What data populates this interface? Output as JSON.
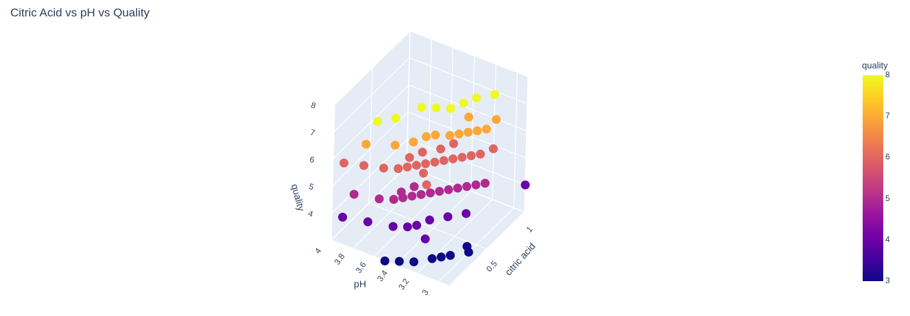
{
  "chart_data": {
    "type": "scatter",
    "title": "Citric Acid vs pH vs Quality",
    "axes": {
      "x": {
        "label": "citric acid",
        "range": [
          0,
          1
        ],
        "ticks": [
          "0.5",
          "1"
        ]
      },
      "y": {
        "label": "pH",
        "range": [
          2.9,
          4.0
        ],
        "ticks": [
          "3",
          "3.2",
          "3.4",
          "3.6",
          "3.8",
          "4"
        ]
      },
      "z": {
        "label": "quality",
        "range": [
          3,
          8
        ],
        "ticks": [
          "4",
          "5",
          "6",
          "7",
          "8"
        ]
      }
    },
    "colorbar": {
      "title": "quality",
      "range": [
        3,
        8
      ],
      "ticks": [
        "3",
        "4",
        "5",
        "6",
        "7",
        "8"
      ],
      "colorscale": [
        "#0d0887",
        "#46039f",
        "#7201a8",
        "#9c179e",
        "#bd3786",
        "#d8576b",
        "#ed7953",
        "#fb9f3a",
        "#fdca26",
        "#f0f921"
      ]
    },
    "points": [
      {
        "x": 0.0,
        "y": 3.9,
        "z": 6
      },
      {
        "x": 0.05,
        "y": 3.75,
        "z": 6
      },
      {
        "x": 0.1,
        "y": 3.6,
        "z": 6
      },
      {
        "x": 0.15,
        "y": 3.5,
        "z": 6
      },
      {
        "x": 0.2,
        "y": 3.45,
        "z": 6
      },
      {
        "x": 0.25,
        "y": 3.4,
        "z": 6
      },
      {
        "x": 0.3,
        "y": 3.35,
        "z": 6
      },
      {
        "x": 0.35,
        "y": 3.3,
        "z": 6
      },
      {
        "x": 0.4,
        "y": 3.25,
        "z": 6
      },
      {
        "x": 0.45,
        "y": 3.2,
        "z": 6
      },
      {
        "x": 0.5,
        "y": 3.15,
        "z": 6
      },
      {
        "x": 0.55,
        "y": 3.1,
        "z": 6
      },
      {
        "x": 0.6,
        "y": 3.05,
        "z": 6
      },
      {
        "x": 0.7,
        "y": 3.0,
        "z": 6
      },
      {
        "x": 0.3,
        "y": 3.5,
        "z": 6
      },
      {
        "x": 0.4,
        "y": 3.45,
        "z": 6
      },
      {
        "x": 0.5,
        "y": 3.35,
        "z": 6
      },
      {
        "x": 0.2,
        "y": 3.3,
        "z": 6
      },
      {
        "x": 0.1,
        "y": 3.2,
        "z": 6
      },
      {
        "x": 0.6,
        "y": 3.3,
        "z": 6
      },
      {
        "x": 0.0,
        "y": 3.7,
        "z": 7
      },
      {
        "x": 0.1,
        "y": 3.5,
        "z": 7
      },
      {
        "x": 0.2,
        "y": 3.4,
        "z": 7
      },
      {
        "x": 0.3,
        "y": 3.35,
        "z": 7
      },
      {
        "x": 0.35,
        "y": 3.3,
        "z": 7
      },
      {
        "x": 0.4,
        "y": 3.2,
        "z": 7
      },
      {
        "x": 0.45,
        "y": 3.15,
        "z": 7
      },
      {
        "x": 0.5,
        "y": 3.1,
        "z": 7
      },
      {
        "x": 0.55,
        "y": 3.05,
        "z": 7
      },
      {
        "x": 0.6,
        "y": 3.0,
        "z": 7
      },
      {
        "x": 0.65,
        "y": 3.2,
        "z": 7
      },
      {
        "x": 0.73,
        "y": 3.0,
        "z": 7
      },
      {
        "x": 0.0,
        "y": 3.6,
        "z": 8
      },
      {
        "x": 0.1,
        "y": 3.5,
        "z": 8
      },
      {
        "x": 0.3,
        "y": 3.4,
        "z": 8
      },
      {
        "x": 0.35,
        "y": 3.3,
        "z": 8
      },
      {
        "x": 0.4,
        "y": 3.2,
        "z": 8
      },
      {
        "x": 0.5,
        "y": 3.15,
        "z": 8
      },
      {
        "x": 0.6,
        "y": 3.1,
        "z": 8
      },
      {
        "x": 0.7,
        "y": 3.0,
        "z": 8
      },
      {
        "x": 0.0,
        "y": 3.8,
        "z": 5
      },
      {
        "x": 0.05,
        "y": 3.6,
        "z": 5
      },
      {
        "x": 0.1,
        "y": 3.5,
        "z": 5
      },
      {
        "x": 0.15,
        "y": 3.45,
        "z": 5
      },
      {
        "x": 0.2,
        "y": 3.4,
        "z": 5
      },
      {
        "x": 0.25,
        "y": 3.35,
        "z": 5
      },
      {
        "x": 0.3,
        "y": 3.3,
        "z": 5
      },
      {
        "x": 0.35,
        "y": 3.25,
        "z": 5
      },
      {
        "x": 0.4,
        "y": 3.2,
        "z": 5
      },
      {
        "x": 0.45,
        "y": 3.15,
        "z": 5
      },
      {
        "x": 0.5,
        "y": 3.1,
        "z": 5
      },
      {
        "x": 0.55,
        "y": 3.05,
        "z": 5
      },
      {
        "x": 0.6,
        "y": 3.0,
        "z": 5
      },
      {
        "x": 0.2,
        "y": 3.5,
        "z": 5
      },
      {
        "x": 0.3,
        "y": 3.45,
        "z": 5
      },
      {
        "x": 0.0,
        "y": 3.9,
        "z": 4
      },
      {
        "x": 0.05,
        "y": 3.7,
        "z": 4
      },
      {
        "x": 0.1,
        "y": 3.5,
        "z": 4
      },
      {
        "x": 0.15,
        "y": 3.4,
        "z": 4
      },
      {
        "x": 0.2,
        "y": 3.35,
        "z": 4
      },
      {
        "x": 0.3,
        "y": 3.3,
        "z": 4
      },
      {
        "x": 0.4,
        "y": 3.2,
        "z": 4
      },
      {
        "x": 0.5,
        "y": 3.1,
        "z": 4
      },
      {
        "x": 0.1,
        "y": 3.2,
        "z": 4
      },
      {
        "x": 1.0,
        "y": 2.9,
        "z": 4
      },
      {
        "x": 0.0,
        "y": 3.5,
        "z": 3
      },
      {
        "x": 0.05,
        "y": 3.4,
        "z": 3
      },
      {
        "x": 0.1,
        "y": 3.3,
        "z": 3
      },
      {
        "x": 0.2,
        "y": 3.2,
        "z": 3
      },
      {
        "x": 0.25,
        "y": 3.15,
        "z": 3
      },
      {
        "x": 0.3,
        "y": 3.1,
        "z": 3
      },
      {
        "x": 0.4,
        "y": 3.0,
        "z": 3
      },
      {
        "x": 0.45,
        "y": 3.05,
        "z": 3
      }
    ]
  }
}
